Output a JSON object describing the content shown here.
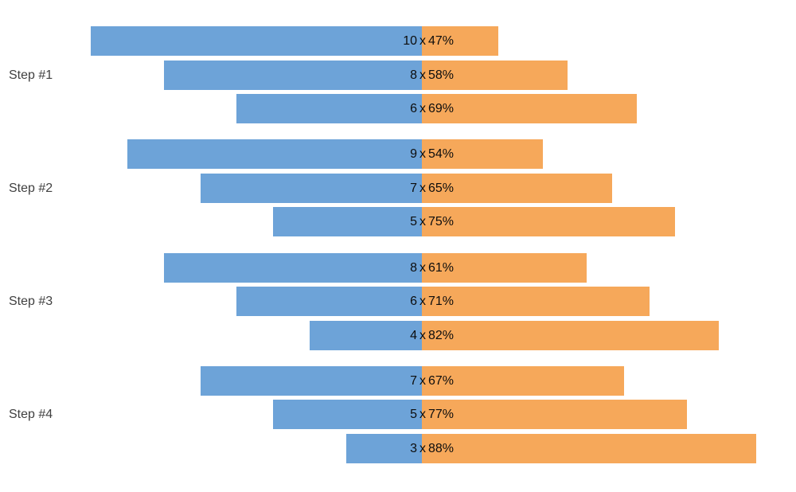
{
  "chart_data": {
    "type": "bar",
    "variant": "diverging-horizontal-grouped",
    "title": "",
    "xlabel": "",
    "ylabel": "",
    "legend": "none",
    "axes_visible": false,
    "grid": false,
    "background": "#ffffff",
    "separator_text": "x",
    "groups": [
      {
        "label": "Step #1",
        "bars": [
          {
            "count": 10,
            "percent": 47,
            "label": "10 x 47%"
          },
          {
            "count": 8,
            "percent": 58,
            "label": "8 x 58%"
          },
          {
            "count": 6,
            "percent": 69,
            "label": "6 x 69%"
          }
        ]
      },
      {
        "label": "Step #2",
        "bars": [
          {
            "count": 9,
            "percent": 54,
            "label": "9 x 54%"
          },
          {
            "count": 7,
            "percent": 65,
            "label": "7 x 65%"
          },
          {
            "count": 5,
            "percent": 75,
            "label": "5 x 75%"
          }
        ]
      },
      {
        "label": "Step #3",
        "bars": [
          {
            "count": 8,
            "percent": 61,
            "label": "8 x 61%"
          },
          {
            "count": 6,
            "percent": 71,
            "label": "6 x 71%"
          },
          {
            "count": 4,
            "percent": 82,
            "label": "4 x 82%"
          }
        ]
      },
      {
        "label": "Step #4",
        "bars": [
          {
            "count": 7,
            "percent": 67,
            "label": "7 x 67%"
          },
          {
            "count": 5,
            "percent": 77,
            "label": "5 x 77%"
          },
          {
            "count": 3,
            "percent": 88,
            "label": "3 x 88%"
          }
        ]
      }
    ],
    "colors": {
      "count_bar": "#6da3d8",
      "percent_bar": "#f6a85a",
      "bar_label_text": "#0d0d0d",
      "group_label_text": "#404040"
    }
  }
}
